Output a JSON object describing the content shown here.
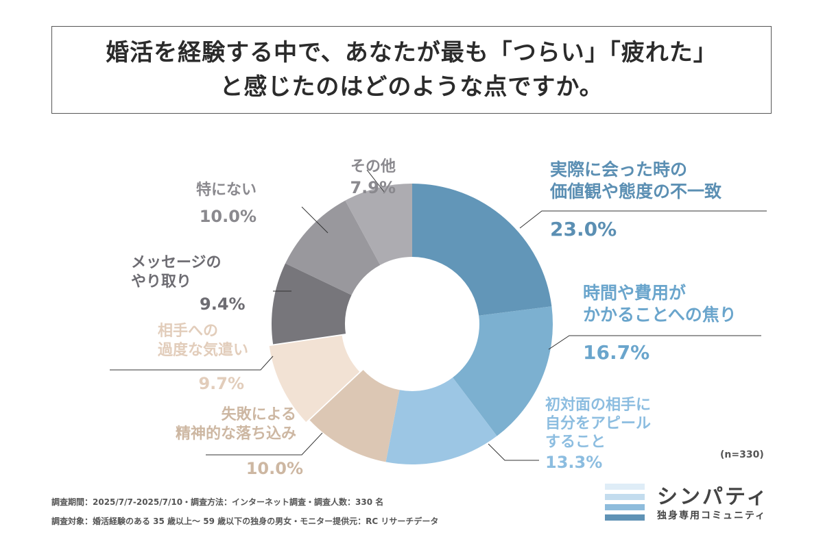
{
  "title": {
    "line1": "婚活を経験する中で、あなたが最も「つらい」「疲れた」",
    "line2": "と感じたのはどのような点ですか。"
  },
  "chart_data": {
    "type": "pie",
    "donut": true,
    "title": "婚活を経験する中で、あなたが最も「つらい」「疲れた」と感じたのはどのような点ですか。",
    "unit": "%",
    "slices": [
      {
        "label": [
          "実際に会った時の",
          "価値観や態度の不一致"
        ],
        "value": 23.0,
        "value_label": "23.0%",
        "color": "#6296b8",
        "text_color": "#5b8fb3"
      },
      {
        "label": [
          "時間や費用が",
          "かかることへの焦り"
        ],
        "value": 16.7,
        "value_label": "16.7%",
        "color": "#7cb0d0",
        "text_color": "#6aa5cc"
      },
      {
        "label": [
          "初対面の相手に",
          "自分をアピール",
          "すること"
        ],
        "value": 13.3,
        "value_label": "13.3%",
        "color": "#9cc6e4",
        "text_color": "#8cbde0"
      },
      {
        "label": [
          "失敗による",
          "精神的な落ち込み"
        ],
        "value": 10.0,
        "value_label": "10.0%",
        "color": "#dcc7b4",
        "text_color": "#cdb7a2"
      },
      {
        "label": [
          "相手への",
          "過度な気遣い"
        ],
        "value": 9.7,
        "value_label": "9.7%",
        "color": "#f2e2d4",
        "text_color": "#e2cdbb"
      },
      {
        "label": [
          "メッセージの",
          "やり取り"
        ],
        "value": 9.4,
        "value_label": "9.4%",
        "color": "#77767b",
        "text_color": "#6d6c72"
      },
      {
        "label": [
          "特にない"
        ],
        "value": 10.0,
        "value_label": "10.0%",
        "color": "#99989d",
        "text_color": "#8a898e"
      },
      {
        "label": [
          "その他"
        ],
        "value": 7.9,
        "value_label": "7.9%",
        "color": "#adacb1",
        "text_color": "#8a898e"
      }
    ]
  },
  "sample_note": "(n=330)",
  "footer": {
    "line1": "調査期間：2025/7/7-2025/7/10・調査方法：インターネット調査・調査人数：330 名",
    "line2": "調査対象：婚活経験のある 35 歳以上～ 59 歳以下の独身の男女・モニター提供元：RC リサーチデータ"
  },
  "logo": {
    "name": "シンパティ",
    "subtitle": "独身専用コミュニティ",
    "bar_colors": [
      "#dfedf7",
      "#c3dcee",
      "#8ebcdc",
      "#5f92b5"
    ]
  }
}
